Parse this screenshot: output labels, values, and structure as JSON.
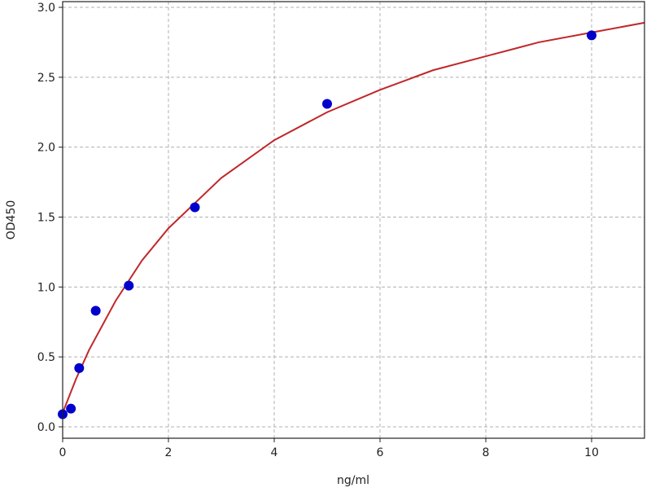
{
  "chart_data": {
    "type": "scatter",
    "title": "",
    "xlabel": "ng/ml",
    "ylabel": "OD450",
    "xlim": [
      0,
      11
    ],
    "ylim": [
      -0.08,
      3.0
    ],
    "x_ticks": [
      0,
      2,
      4,
      6,
      8,
      10
    ],
    "y_ticks": [
      0.0,
      0.5,
      1.0,
      1.5,
      2.0,
      2.5,
      3.0
    ],
    "x_tick_labels": [
      "0",
      "2",
      "4",
      "6",
      "8",
      "10"
    ],
    "y_tick_labels": [
      "0.0",
      "0.5",
      "1.0",
      "1.5",
      "2.0",
      "2.5",
      "3.0"
    ],
    "grid": true,
    "points": {
      "x": [
        0,
        0.156,
        0.3125,
        0.625,
        1.25,
        2.5,
        5,
        10
      ],
      "y": [
        0.09,
        0.13,
        0.42,
        0.83,
        1.01,
        1.57,
        2.31,
        2.8
      ],
      "color": "#0000cc"
    },
    "fit_curve": {
      "x": [
        0,
        0.25,
        0.5,
        1,
        1.5,
        2,
        3,
        4,
        5,
        6,
        7,
        8,
        9,
        10,
        11
      ],
      "y": [
        0.1,
        0.34,
        0.55,
        0.9,
        1.19,
        1.42,
        1.78,
        2.05,
        2.25,
        2.41,
        2.55,
        2.65,
        2.75,
        2.82,
        2.89
      ],
      "color": "#c0282a"
    }
  }
}
